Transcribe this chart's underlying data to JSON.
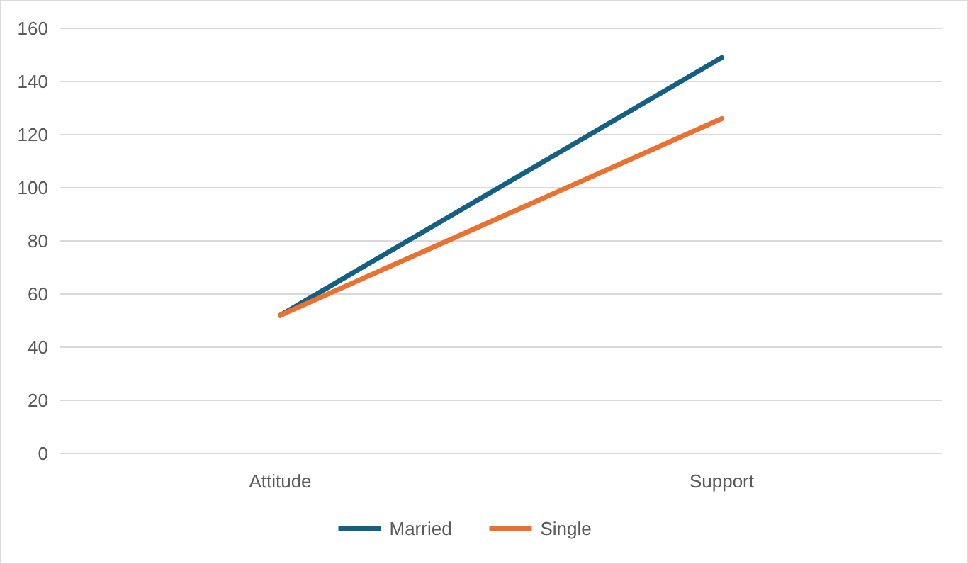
{
  "chart_data": {
    "type": "line",
    "categories": [
      "Attitude",
      "Support"
    ],
    "series": [
      {
        "name": "Married",
        "color": "#156082",
        "values": [
          52,
          149
        ]
      },
      {
        "name": "Single",
        "color": "#e97132",
        "values": [
          52,
          126
        ]
      }
    ],
    "ylim": [
      0,
      160
    ],
    "yticks": [
      0,
      20,
      40,
      60,
      80,
      100,
      120,
      140,
      160
    ],
    "grid": "y",
    "legend": "bottom",
    "marker": "none",
    "line_style": "solid"
  }
}
